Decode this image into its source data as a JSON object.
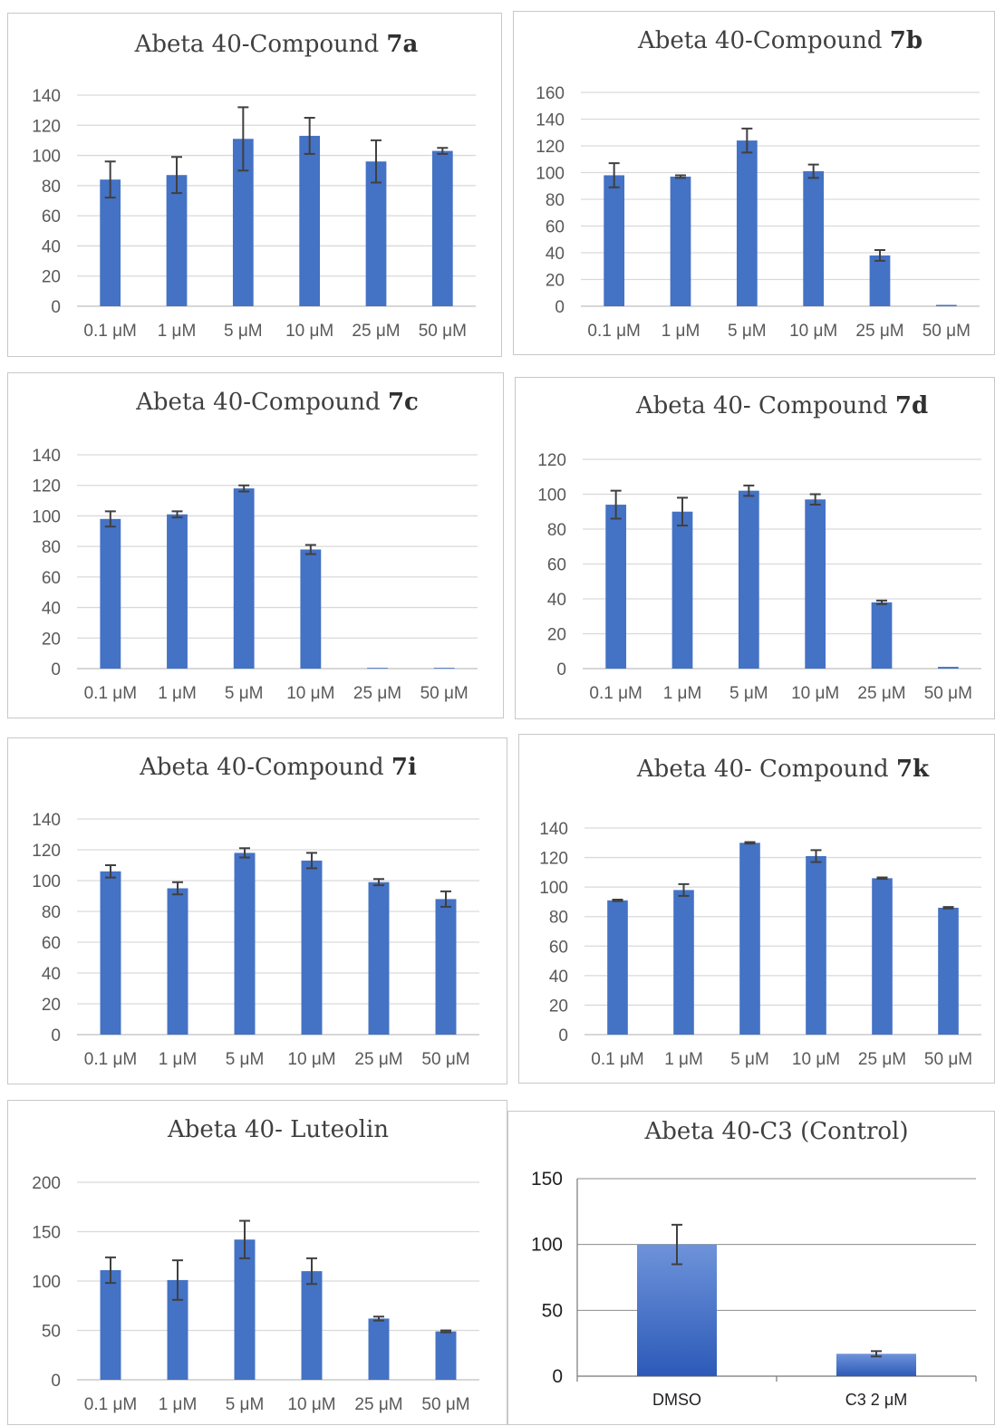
{
  "chart_data": [
    {
      "type": "bar",
      "title": "Abeta 40-Compound ",
      "title_bold": "7a",
      "categories": [
        "0.1 μM",
        "1 μM",
        "5 μM",
        "10 μM",
        "25 μM",
        "50 μM"
      ],
      "values": [
        84,
        87,
        111,
        113,
        96,
        103
      ],
      "errors": [
        12,
        12,
        21,
        12,
        14,
        2
      ],
      "ylim": [
        0,
        140
      ],
      "yticks": [
        0,
        20,
        40,
        60,
        80,
        100,
        120,
        140
      ],
      "grid": true,
      "color": "#4472C4"
    },
    {
      "type": "bar",
      "title": "Abeta 40-Compound ",
      "title_bold": "7b",
      "categories": [
        "0.1 μM",
        "1 μM",
        "5 μM",
        "10 μM",
        "25 μM",
        "50 μM"
      ],
      "values": [
        98,
        97,
        124,
        101,
        38,
        1
      ],
      "errors": [
        9,
        1,
        9,
        5,
        4,
        0
      ],
      "ylim": [
        0,
        160
      ],
      "yticks": [
        0,
        20,
        40,
        60,
        80,
        100,
        120,
        140,
        160
      ],
      "grid": true,
      "color": "#4472C4"
    },
    {
      "type": "bar",
      "title": "Abeta 40-Compound ",
      "title_bold": "7c",
      "categories": [
        "0.1 μM",
        "1 μM",
        "5 μM",
        "10 μM",
        "25 μM",
        "50 μM"
      ],
      "values": [
        98,
        101,
        118,
        78,
        0.5,
        0.5
      ],
      "errors": [
        5,
        2,
        2,
        3,
        0,
        0
      ],
      "ylim": [
        0,
        140
      ],
      "yticks": [
        0,
        20,
        40,
        60,
        80,
        100,
        120,
        140
      ],
      "grid": true,
      "color": "#4472C4"
    },
    {
      "type": "bar",
      "title": "Abeta 40- Compound ",
      "title_bold": "7d",
      "categories": [
        "0.1 μM",
        "1 μM",
        "5 μM",
        "10 μM",
        "25 μM",
        "50 μM"
      ],
      "values": [
        94,
        90,
        102,
        97,
        38,
        1
      ],
      "errors": [
        8,
        8,
        3,
        3,
        1,
        0
      ],
      "ylim": [
        0,
        120
      ],
      "yticks": [
        0,
        20,
        40,
        60,
        80,
        100,
        120
      ],
      "grid": true,
      "color": "#4472C4"
    },
    {
      "type": "bar",
      "title": "Abeta 40-Compound ",
      "title_bold": "7i",
      "categories": [
        "0.1 μM",
        "1 μM",
        "5 μM",
        "10 μM",
        "25 μM",
        "50 μM"
      ],
      "values": [
        106,
        95,
        118,
        113,
        99,
        88
      ],
      "errors": [
        4,
        4,
        3,
        5,
        2,
        5
      ],
      "ylim": [
        0,
        140
      ],
      "yticks": [
        0,
        20,
        40,
        60,
        80,
        100,
        120,
        140
      ],
      "grid": true,
      "color": "#4472C4"
    },
    {
      "type": "bar",
      "title": "Abeta 40- Compound ",
      "title_bold": "7k",
      "categories": [
        "0.1 μM",
        "1 μM",
        "5 μM",
        "10 μM",
        "25 μM",
        "50 μM"
      ],
      "values": [
        91,
        98,
        130,
        121,
        106,
        86
      ],
      "errors": [
        0.5,
        4,
        0.5,
        4,
        0.5,
        0.5
      ],
      "ylim": [
        0,
        140
      ],
      "yticks": [
        0,
        20,
        40,
        60,
        80,
        100,
        120,
        140
      ],
      "grid": true,
      "color": "#4472C4"
    },
    {
      "type": "bar",
      "title": "Abeta 40- Luteolin",
      "title_bold": "",
      "categories": [
        "0.1 μM",
        "1 μM",
        "5 μM",
        "10 μM",
        "25 μM",
        "50 μM"
      ],
      "values": [
        111,
        101,
        142,
        110,
        62,
        49
      ],
      "errors": [
        13,
        20,
        19,
        13,
        2,
        1
      ],
      "ylim": [
        0,
        200
      ],
      "yticks": [
        0,
        50,
        100,
        150,
        200
      ],
      "grid": true,
      "color": "#4472C4"
    },
    {
      "type": "bar",
      "title": "Abeta 40-C3 (Control)",
      "title_bold": "",
      "categories": [
        "DMSO",
        "C3 2 μM"
      ],
      "values": [
        100,
        17
      ],
      "errors": [
        15,
        2
      ],
      "ylim": [
        0,
        150
      ],
      "yticks": [
        0,
        50,
        100,
        150
      ],
      "grid": true,
      "color": "#3a65c2"
    }
  ]
}
